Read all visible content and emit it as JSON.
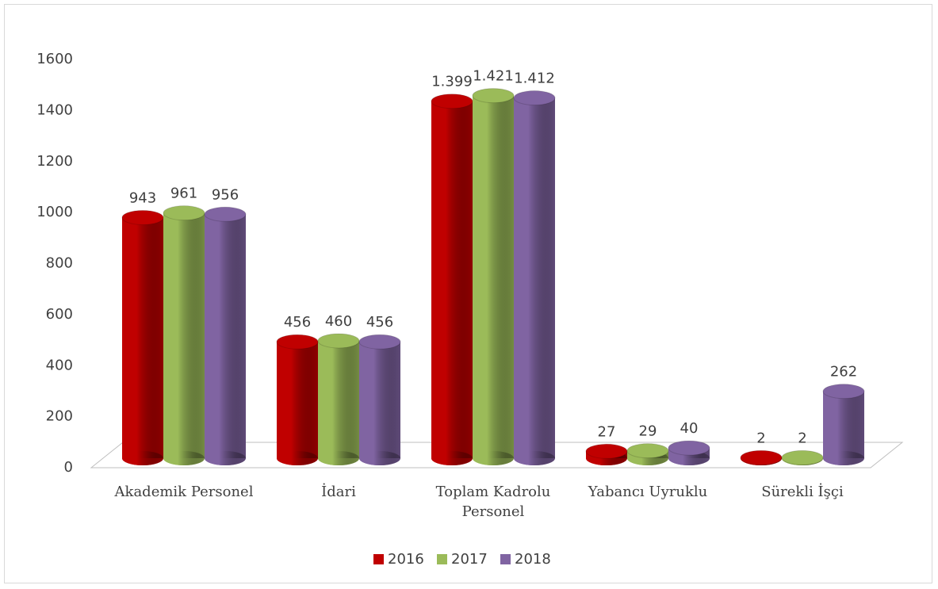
{
  "chart_data": {
    "type": "bar3d",
    "categories": [
      "Akademik Personel",
      "İdari",
      "Toplam Kadrolu Personel",
      "Yabancı Uyruklu",
      "Sürekli İşçi"
    ],
    "series": [
      {
        "name": "2016",
        "color": "#c00000",
        "values": [
          943,
          456,
          1399,
          27,
          2
        ],
        "value_labels": [
          "943",
          "456",
          "1.399",
          "27",
          "2"
        ]
      },
      {
        "name": "2017",
        "color": "#9bbb59",
        "values": [
          961,
          460,
          1421,
          29,
          2
        ],
        "value_labels": [
          "961",
          "460",
          "1.421",
          "29",
          "2"
        ]
      },
      {
        "name": "2018",
        "color": "#8064a2",
        "values": [
          956,
          456,
          1412,
          40,
          262
        ],
        "value_labels": [
          "956",
          "456",
          "1.412",
          "40",
          "262"
        ]
      }
    ],
    "ylim": [
      0,
      1600
    ],
    "yticks": [
      0,
      200,
      400,
      600,
      800,
      1000,
      1200,
      1400,
      1600
    ],
    "legend": "bottom"
  }
}
